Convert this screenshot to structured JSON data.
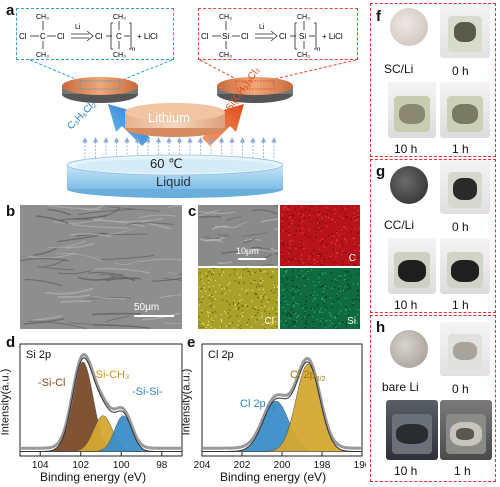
{
  "panel_a": {
    "label": "a",
    "left_formula": {
      "ch3_top": "CH₃",
      "ch3_bottom": "CH₃",
      "cl_left": "Cl",
      "cl_right": "Cl",
      "c": "C",
      "li": "Li",
      "product_cl": "Cl",
      "product_ch3_top": "CH₃",
      "product_ch3_bottom": "CH₃",
      "n": "n",
      "licl": "+ LiCl"
    },
    "right_formula": {
      "ch3_top": "CH₃",
      "ch3_bottom": "CH₃",
      "cl_left": "Cl",
      "cl_right": "Cl",
      "si": "Si",
      "li": "Li",
      "product_cl": "Cl",
      "product_ch3_top": "CH₃",
      "product_ch3_bottom": "CH₃",
      "n": "n",
      "licl": "+ LiCl"
    },
    "left_reagent": "C₃H₆Cl₂",
    "right_reagent": "Si(CH₃)₂Cl₂",
    "lithium_label": "Lithium",
    "temperature": "60 ℃",
    "liquid_label": "Liquid",
    "colors": {
      "left_box": "#2a9fd6",
      "right_box": "#e8452c",
      "left_arrow": "#2f86d8",
      "right_arrow": "#f05a2a",
      "lithium": "#e8a77a",
      "liquid": "#a8d4ef",
      "vapor": "#8aa8d8"
    }
  },
  "panel_b": {
    "label": "b",
    "scale_bar": "50μm"
  },
  "panel_c": {
    "label": "c",
    "scale_bar": "10μm",
    "maps": [
      {
        "element": "",
        "color": "#8c8c8c"
      },
      {
        "element": "C",
        "color": "#c8141a"
      },
      {
        "element": "Cl",
        "color": "#b8b030"
      },
      {
        "element": "Si",
        "color": "#127a4a"
      }
    ]
  },
  "panel_d": {
    "label": "d",
    "title": "Si 2p",
    "xlabel": "Binding energy (eV)",
    "ylabel": "Intensity(a.u.)",
    "peaks": [
      {
        "name": "-Si-Cl",
        "color": "#7a4a2a",
        "label_color": "#8b4a20"
      },
      {
        "name": "-Si-CH₃",
        "color": "#d4a832",
        "label_color": "#c8961e"
      },
      {
        "name": "-Si-Si-",
        "color": "#3a8ec8",
        "label_color": "#2f86c8"
      }
    ]
  },
  "panel_e": {
    "label": "e",
    "title": "Cl 2p",
    "xlabel": "Binding energy (eV)",
    "ylabel": "Intensity(a.u.)",
    "peaks": [
      {
        "name_base": "Cl 2p",
        "name_sub": "1/2",
        "color": "#3a8ec8",
        "label_color": "#2f86c8"
      },
      {
        "name_base": "Cl 2p",
        "name_sub": "3/2",
        "color": "#d4a832",
        "label_color": "#a07810"
      }
    ]
  },
  "panel_f": {
    "label": "f",
    "sample": "SC/Li",
    "times": [
      "0 h",
      "10 h",
      "1 h"
    ]
  },
  "panel_g": {
    "label": "g",
    "sample": "CC/Li",
    "times": [
      "0 h",
      "10 h",
      "1 h"
    ]
  },
  "panel_h": {
    "label": "h",
    "sample": "bare Li",
    "times": [
      "0 h",
      "10 h",
      "1 h"
    ]
  },
  "chart_data": [
    {
      "type": "line",
      "panel": "d",
      "title": "Si 2p",
      "xlabel": "Binding energy (eV)",
      "ylabel": "Intensity(a.u.)",
      "x_ticks": [
        104,
        102,
        100,
        98
      ],
      "xlim": [
        105,
        97
      ],
      "series": [
        {
          "name": "-Si-Cl",
          "center": 101.9,
          "height": 0.8,
          "fwhm": 1.2
        },
        {
          "name": "-Si-CH₃",
          "center": 100.9,
          "height": 0.32,
          "fwhm": 1.1
        },
        {
          "name": "-Si-Si-",
          "center": 99.9,
          "height": 0.32,
          "fwhm": 1.0
        }
      ]
    },
    {
      "type": "line",
      "panel": "e",
      "title": "Cl 2p",
      "xlabel": "Binding energy (eV)",
      "ylabel": "Intensity(a.u.)",
      "x_ticks": [
        204,
        202,
        200,
        198,
        196
      ],
      "xlim": [
        204,
        196
      ],
      "series": [
        {
          "name": "Cl 2p1/2",
          "center": 200.3,
          "height": 0.45,
          "fwhm": 1.5
        },
        {
          "name": "Cl 2p3/2",
          "center": 198.7,
          "height": 0.78,
          "fwhm": 1.4
        }
      ]
    }
  ]
}
